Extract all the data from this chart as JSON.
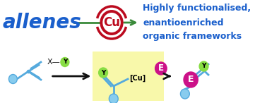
{
  "bg_color": "#ffffff",
  "title_text": "allenes",
  "title_color": "#1a5fcc",
  "right_text_lines": [
    "Highly functionalised,",
    "enantioenriched",
    "organic frameworks"
  ],
  "right_text_color": "#1a5fcc",
  "cu_circle_color": "#bb0a1e",
  "cu_text_color": "#bb0a1e",
  "cu_text": "Cu",
  "line_color": "#3a8a3a",
  "allene_color": "#55aadd",
  "allene_light": "#88ccee",
  "y_circle_color": "#88dd44",
  "e_circle_color": "#cc1188",
  "e_text_color": "#ffffff",
  "highlight_bg": "#f8f8aa",
  "arrow_color": "#111111",
  "xy_color": "#111111"
}
